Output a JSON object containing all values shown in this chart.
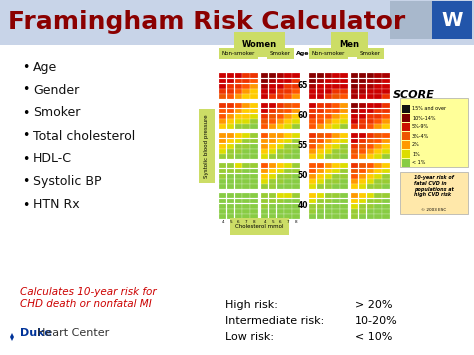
{
  "title": "Framingham Risk Calculator",
  "title_color": "#8B0000",
  "title_fontsize": 18,
  "bg_color": "#FFFFFF",
  "title_bar_color": "#C8D4E8",
  "bullet_items": [
    "Age",
    "Gender",
    "Smoker",
    "Total cholesterol",
    "HDL-C",
    "Systolic BP",
    "HTN Rx"
  ],
  "bullet_color": "#111111",
  "bullet_fontsize": 9,
  "red_text": "Calculates 10-year risk for\nCHD death or nonfatal MI",
  "red_text_color": "#CC0000",
  "red_text_fontsize": 7.5,
  "risk_labels": [
    "High risk:",
    "Intermediate risk:",
    "Low risk:"
  ],
  "risk_values": [
    "> 20%",
    "10-20%",
    "< 10%"
  ],
  "risk_fontsize": 8,
  "duke_text_bold": "Duke",
  "duke_text_normal": " Heart Center",
  "duke_fontsize": 8,
  "duke_color": "#003399",
  "women_label": "Women",
  "men_label": "Men",
  "score_label": "SCORE",
  "header_bg": "#CCDD66",
  "col_header_bg": "#CCDD66",
  "logo_bg1": "#A8B8CC",
  "logo_bg2": "#2255AA",
  "age_labels": [
    "65",
    "60",
    "55",
    "50",
    "40"
  ],
  "score_legend_colors": [
    "#111111",
    "#7B0000",
    "#CC1100",
    "#EE5500",
    "#FF9900",
    "#DDDD00",
    "#88CC44"
  ],
  "score_legend_labels": [
    "15% and over",
    "10%-14%",
    "5%-9%",
    "3%-4%",
    "2%",
    "1%",
    "< 1%"
  ],
  "cvd_box_color": "#FFE8AA",
  "grid_age65_wns": [
    [
      "#CC0000",
      "#CC0000",
      "#CC0000",
      "#EE3300",
      "#EE3300"
    ],
    [
      "#CC0000",
      "#CC0000",
      "#EE3300",
      "#EE3300",
      "#FF5500"
    ],
    [
      "#CC0000",
      "#EE3300",
      "#EE3300",
      "#FF5500",
      "#FF9900"
    ],
    [
      "#EE3300",
      "#EE3300",
      "#FF5500",
      "#FF9900",
      "#FFCC00"
    ],
    [
      "#EE5500",
      "#FF5500",
      "#FF9900",
      "#FFCC00",
      "#FFCC00"
    ]
  ],
  "grid_age65_ws": [
    [
      "#880000",
      "#880000",
      "#AA0000",
      "#CC0000",
      "#CC0000"
    ],
    [
      "#880000",
      "#AA0000",
      "#CC0000",
      "#CC0000",
      "#EE3300"
    ],
    [
      "#AA0000",
      "#CC0000",
      "#CC0000",
      "#EE3300",
      "#EE3300"
    ],
    [
      "#CC0000",
      "#CC0000",
      "#EE3300",
      "#EE3300",
      "#FF5500"
    ],
    [
      "#CC0000",
      "#EE3300",
      "#EE3300",
      "#FF5500",
      "#FF9900"
    ]
  ],
  "grid_age65_mns": [
    [
      "#880000",
      "#880000",
      "#AA0000",
      "#CC0000",
      "#CC0000"
    ],
    [
      "#880000",
      "#AA0000",
      "#CC0000",
      "#CC0000",
      "#CC0000"
    ],
    [
      "#AA0000",
      "#CC0000",
      "#CC0000",
      "#CC0000",
      "#CC0000"
    ],
    [
      "#CC0000",
      "#CC0000",
      "#CC0000",
      "#EE3300",
      "#EE3300"
    ],
    [
      "#CC0000",
      "#CC0000",
      "#EE3300",
      "#EE5500",
      "#FF5500"
    ]
  ],
  "grid_age65_ms": [
    [
      "#880000",
      "#880000",
      "#880000",
      "#AA0000",
      "#AA0000"
    ],
    [
      "#880000",
      "#880000",
      "#AA0000",
      "#AA0000",
      "#CC0000"
    ],
    [
      "#880000",
      "#AA0000",
      "#AA0000",
      "#CC0000",
      "#CC0000"
    ],
    [
      "#AA0000",
      "#AA0000",
      "#CC0000",
      "#CC0000",
      "#CC0000"
    ],
    [
      "#AA0000",
      "#CC0000",
      "#CC0000",
      "#CC0000",
      "#EE3300"
    ]
  ],
  "grid_age60_wns": [
    [
      "#EE3300",
      "#EE3300",
      "#FF5500",
      "#FF9900",
      "#FFCC00"
    ],
    [
      "#FF5500",
      "#FF5500",
      "#FF9900",
      "#FFCC00",
      "#FFCC00"
    ],
    [
      "#FF5500",
      "#FF9900",
      "#FFCC00",
      "#FFCC00",
      "#DDDD00"
    ],
    [
      "#FF9900",
      "#FFCC00",
      "#DDDD00",
      "#DDDD00",
      "#99CC33"
    ],
    [
      "#FFCC00",
      "#DDDD00",
      "#99CC33",
      "#99CC33",
      "#88CC44"
    ]
  ],
  "grid_age60_ws": [
    [
      "#CC0000",
      "#CC0000",
      "#EE3300",
      "#EE5500",
      "#FF5500"
    ],
    [
      "#CC0000",
      "#EE3300",
      "#EE5500",
      "#FF5500",
      "#FF9900"
    ],
    [
      "#EE3300",
      "#EE5500",
      "#FF5500",
      "#FF9900",
      "#FFCC00"
    ],
    [
      "#EE5500",
      "#FF5500",
      "#FF9900",
      "#FFCC00",
      "#DDDD00"
    ],
    [
      "#FF5500",
      "#FF9900",
      "#FFCC00",
      "#DDDD00",
      "#99CC33"
    ]
  ],
  "grid_age60_mns": [
    [
      "#CC0000",
      "#EE3300",
      "#EE3300",
      "#FF5500",
      "#FF9900"
    ],
    [
      "#EE3300",
      "#EE3300",
      "#FF5500",
      "#FF5500",
      "#FF9900"
    ],
    [
      "#EE3300",
      "#FF5500",
      "#FF5500",
      "#FF9900",
      "#FFCC00"
    ],
    [
      "#FF5500",
      "#FF5500",
      "#FF9900",
      "#FFCC00",
      "#DDDD00"
    ],
    [
      "#FF5500",
      "#FF9900",
      "#FFCC00",
      "#DDDD00",
      "#99CC33"
    ]
  ],
  "grid_age60_ms": [
    [
      "#880000",
      "#AA0000",
      "#CC0000",
      "#CC0000",
      "#EE3300"
    ],
    [
      "#AA0000",
      "#CC0000",
      "#CC0000",
      "#EE3300",
      "#EE3300"
    ],
    [
      "#CC0000",
      "#CC0000",
      "#EE3300",
      "#EE3300",
      "#FF5500"
    ],
    [
      "#CC0000",
      "#EE3300",
      "#EE3300",
      "#FF5500",
      "#FF9900"
    ],
    [
      "#EE3300",
      "#EE3300",
      "#FF5500",
      "#FF9900",
      "#FFCC00"
    ]
  ],
  "grid_age55_wns": [
    [
      "#FF9900",
      "#FF9900",
      "#FFCC00",
      "#DDDD00",
      "#99CC33"
    ],
    [
      "#FF9900",
      "#FFCC00",
      "#DDDD00",
      "#99CC33",
      "#99CC33"
    ],
    [
      "#FFCC00",
      "#DDDD00",
      "#99CC33",
      "#99CC33",
      "#88CC44"
    ],
    [
      "#DDDD00",
      "#99CC33",
      "#99CC33",
      "#88CC44",
      "#88CC44"
    ],
    [
      "#99CC33",
      "#99CC33",
      "#88CC44",
      "#88CC44",
      "#88CC44"
    ]
  ],
  "grid_age55_ws": [
    [
      "#FF5500",
      "#FF9900",
      "#FF9900",
      "#FFCC00",
      "#DDDD00"
    ],
    [
      "#FF9900",
      "#FF9900",
      "#FFCC00",
      "#DDDD00",
      "#99CC33"
    ],
    [
      "#FF9900",
      "#FFCC00",
      "#DDDD00",
      "#99CC33",
      "#99CC33"
    ],
    [
      "#FFCC00",
      "#DDDD00",
      "#99CC33",
      "#99CC33",
      "#88CC44"
    ],
    [
      "#DDDD00",
      "#99CC33",
      "#99CC33",
      "#88CC44",
      "#88CC44"
    ]
  ],
  "grid_age55_mns": [
    [
      "#EE3300",
      "#EE5500",
      "#FF5500",
      "#FF9900",
      "#FFCC00"
    ],
    [
      "#EE5500",
      "#FF5500",
      "#FF9900",
      "#FFCC00",
      "#DDDD00"
    ],
    [
      "#FF5500",
      "#FF9900",
      "#FFCC00",
      "#DDDD00",
      "#99CC33"
    ],
    [
      "#FF9900",
      "#FFCC00",
      "#DDDD00",
      "#99CC33",
      "#99CC33"
    ],
    [
      "#FFCC00",
      "#DDDD00",
      "#99CC33",
      "#99CC33",
      "#88CC44"
    ]
  ],
  "grid_age55_ms": [
    [
      "#CC0000",
      "#CC0000",
      "#EE3300",
      "#EE5500",
      "#FF5500"
    ],
    [
      "#CC0000",
      "#EE3300",
      "#EE5500",
      "#FF5500",
      "#FF9900"
    ],
    [
      "#EE3300",
      "#EE5500",
      "#FF5500",
      "#FF9900",
      "#FFCC00"
    ],
    [
      "#EE5500",
      "#FF5500",
      "#FF9900",
      "#FFCC00",
      "#DDDD00"
    ],
    [
      "#FF5500",
      "#FF9900",
      "#FFCC00",
      "#DDDD00",
      "#99CC33"
    ]
  ],
  "grid_age50_wns": [
    [
      "#99CC33",
      "#99CC33",
      "#DDDD00",
      "#99CC33",
      "#99CC33"
    ],
    [
      "#99CC33",
      "#99CC33",
      "#99CC33",
      "#88CC44",
      "#88CC44"
    ],
    [
      "#99CC33",
      "#88CC44",
      "#88CC44",
      "#88CC44",
      "#88CC44"
    ],
    [
      "#88CC44",
      "#88CC44",
      "#88CC44",
      "#88CC44",
      "#88CC44"
    ],
    [
      "#88CC44",
      "#88CC44",
      "#88CC44",
      "#88CC44",
      "#88CC44"
    ]
  ],
  "grid_age50_ws": [
    [
      "#FF5500",
      "#FF9900",
      "#FFCC00",
      "#DDDD00",
      "#99CC33"
    ],
    [
      "#FF9900",
      "#FFCC00",
      "#DDDD00",
      "#99CC33",
      "#99CC33"
    ],
    [
      "#FFCC00",
      "#DDDD00",
      "#99CC33",
      "#99CC33",
      "#88CC44"
    ],
    [
      "#DDDD00",
      "#99CC33",
      "#99CC33",
      "#88CC44",
      "#88CC44"
    ],
    [
      "#99CC33",
      "#99CC33",
      "#88CC44",
      "#88CC44",
      "#88CC44"
    ]
  ],
  "grid_age50_mns": [
    [
      "#FF5500",
      "#FF5500",
      "#FF9900",
      "#FFCC00",
      "#DDDD00"
    ],
    [
      "#FF5500",
      "#FF9900",
      "#FFCC00",
      "#DDDD00",
      "#99CC33"
    ],
    [
      "#FF9900",
      "#FFCC00",
      "#DDDD00",
      "#99CC33",
      "#99CC33"
    ],
    [
      "#FFCC00",
      "#DDDD00",
      "#99CC33",
      "#99CC33",
      "#88CC44"
    ],
    [
      "#DDDD00",
      "#99CC33",
      "#99CC33",
      "#88CC44",
      "#88CC44"
    ]
  ],
  "grid_age50_ms": [
    [
      "#EE3300",
      "#EE5500",
      "#FF5500",
      "#FF9900",
      "#FFCC00"
    ],
    [
      "#EE5500",
      "#FF5500",
      "#FF9900",
      "#FFCC00",
      "#DDDD00"
    ],
    [
      "#FF5500",
      "#FF9900",
      "#FFCC00",
      "#DDDD00",
      "#99CC33"
    ],
    [
      "#FF9900",
      "#FFCC00",
      "#DDDD00",
      "#99CC33",
      "#99CC33"
    ],
    [
      "#FFCC00",
      "#DDDD00",
      "#99CC33",
      "#99CC33",
      "#88CC44"
    ]
  ],
  "grid_age40_wns": [
    [
      "#88CC44",
      "#88CC44",
      "#88CC44",
      "#88CC44",
      "#88CC44"
    ],
    [
      "#88CC44",
      "#88CC44",
      "#88CC44",
      "#88CC44",
      "#88CC44"
    ],
    [
      "#88CC44",
      "#88CC44",
      "#88CC44",
      "#88CC44",
      "#88CC44"
    ],
    [
      "#88CC44",
      "#88CC44",
      "#88CC44",
      "#88CC44",
      "#88CC44"
    ],
    [
      "#88CC44",
      "#88CC44",
      "#88CC44",
      "#88CC44",
      "#88CC44"
    ]
  ],
  "grid_age40_ws": [
    [
      "#99CC33",
      "#99CC33",
      "#DDDD00",
      "#DDDD00",
      "#99CC33"
    ],
    [
      "#99CC33",
      "#99CC33",
      "#99CC33",
      "#88CC44",
      "#88CC44"
    ],
    [
      "#99CC33",
      "#88CC44",
      "#88CC44",
      "#88CC44",
      "#88CC44"
    ],
    [
      "#88CC44",
      "#88CC44",
      "#88CC44",
      "#88CC44",
      "#88CC44"
    ],
    [
      "#88CC44",
      "#88CC44",
      "#88CC44",
      "#88CC44",
      "#88CC44"
    ]
  ],
  "grid_age40_mns": [
    [
      "#FFCC00",
      "#DDDD00",
      "#99CC33",
      "#99CC33",
      "#88CC44"
    ],
    [
      "#DDDD00",
      "#99CC33",
      "#99CC33",
      "#88CC44",
      "#88CC44"
    ],
    [
      "#99CC33",
      "#99CC33",
      "#88CC44",
      "#88CC44",
      "#88CC44"
    ],
    [
      "#99CC33",
      "#88CC44",
      "#88CC44",
      "#88CC44",
      "#88CC44"
    ],
    [
      "#88CC44",
      "#88CC44",
      "#88CC44",
      "#88CC44",
      "#88CC44"
    ]
  ],
  "grid_age40_ms": [
    [
      "#FF9900",
      "#FFCC00",
      "#DDDD00",
      "#99CC33",
      "#99CC33"
    ],
    [
      "#FFCC00",
      "#DDDD00",
      "#99CC33",
      "#99CC33",
      "#88CC44"
    ],
    [
      "#DDDD00",
      "#99CC33",
      "#99CC33",
      "#88CC44",
      "#88CC44"
    ],
    [
      "#99CC33",
      "#99CC33",
      "#88CC44",
      "#88CC44",
      "#88CC44"
    ],
    [
      "#99CC33",
      "#88CC44",
      "#88CC44",
      "#88CC44",
      "#88CC44"
    ]
  ]
}
